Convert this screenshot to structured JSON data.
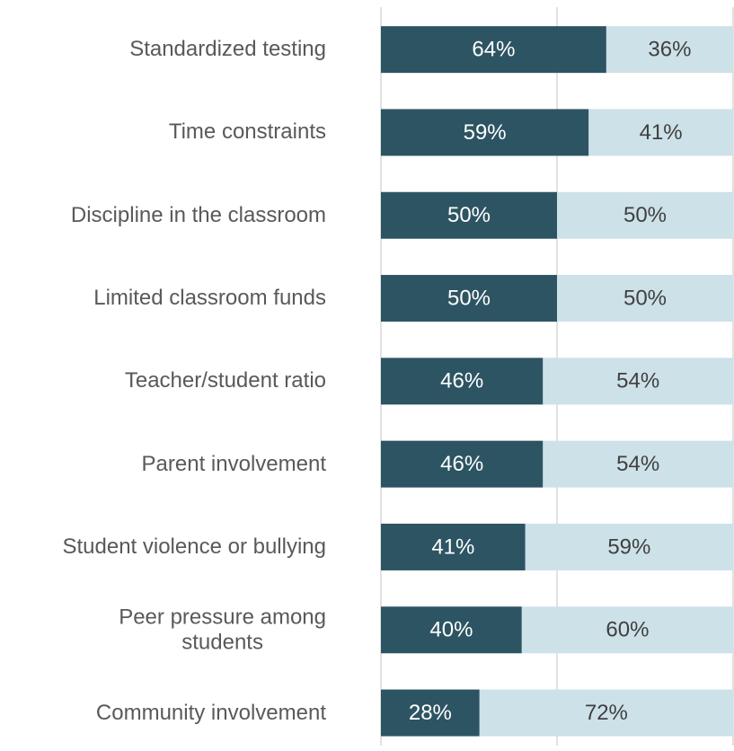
{
  "chart_data": {
    "type": "stacked_bar_horizontal",
    "categories": [
      "Standardized testing",
      "Time constraints",
      "Discipline in the classroom",
      "Limited classroom funds",
      "Teacher/student ratio",
      "Parent involvement",
      "Student violence or bullying",
      "Peer pressure among\nstudents",
      "Community involvement"
    ],
    "series": [
      {
        "color": "#2d5463",
        "label_color": "#ffffff",
        "values": [
          64,
          59,
          50,
          50,
          46,
          46,
          41,
          40,
          28
        ],
        "value_labels": [
          "64%",
          "59%",
          "50%",
          "50%",
          "46%",
          "46%",
          "41%",
          "40%",
          "28%"
        ]
      },
      {
        "color": "#cde1e8",
        "label_color": "#404040",
        "values": [
          36,
          41,
          50,
          50,
          54,
          54,
          59,
          60,
          72
        ],
        "value_labels": [
          "36%",
          "41%",
          "50%",
          "50%",
          "54%",
          "54%",
          "59%",
          "60%",
          "72%"
        ]
      }
    ],
    "xlim": [
      0,
      100
    ],
    "xticks": [
      0,
      50,
      100
    ],
    "grid": true
  }
}
